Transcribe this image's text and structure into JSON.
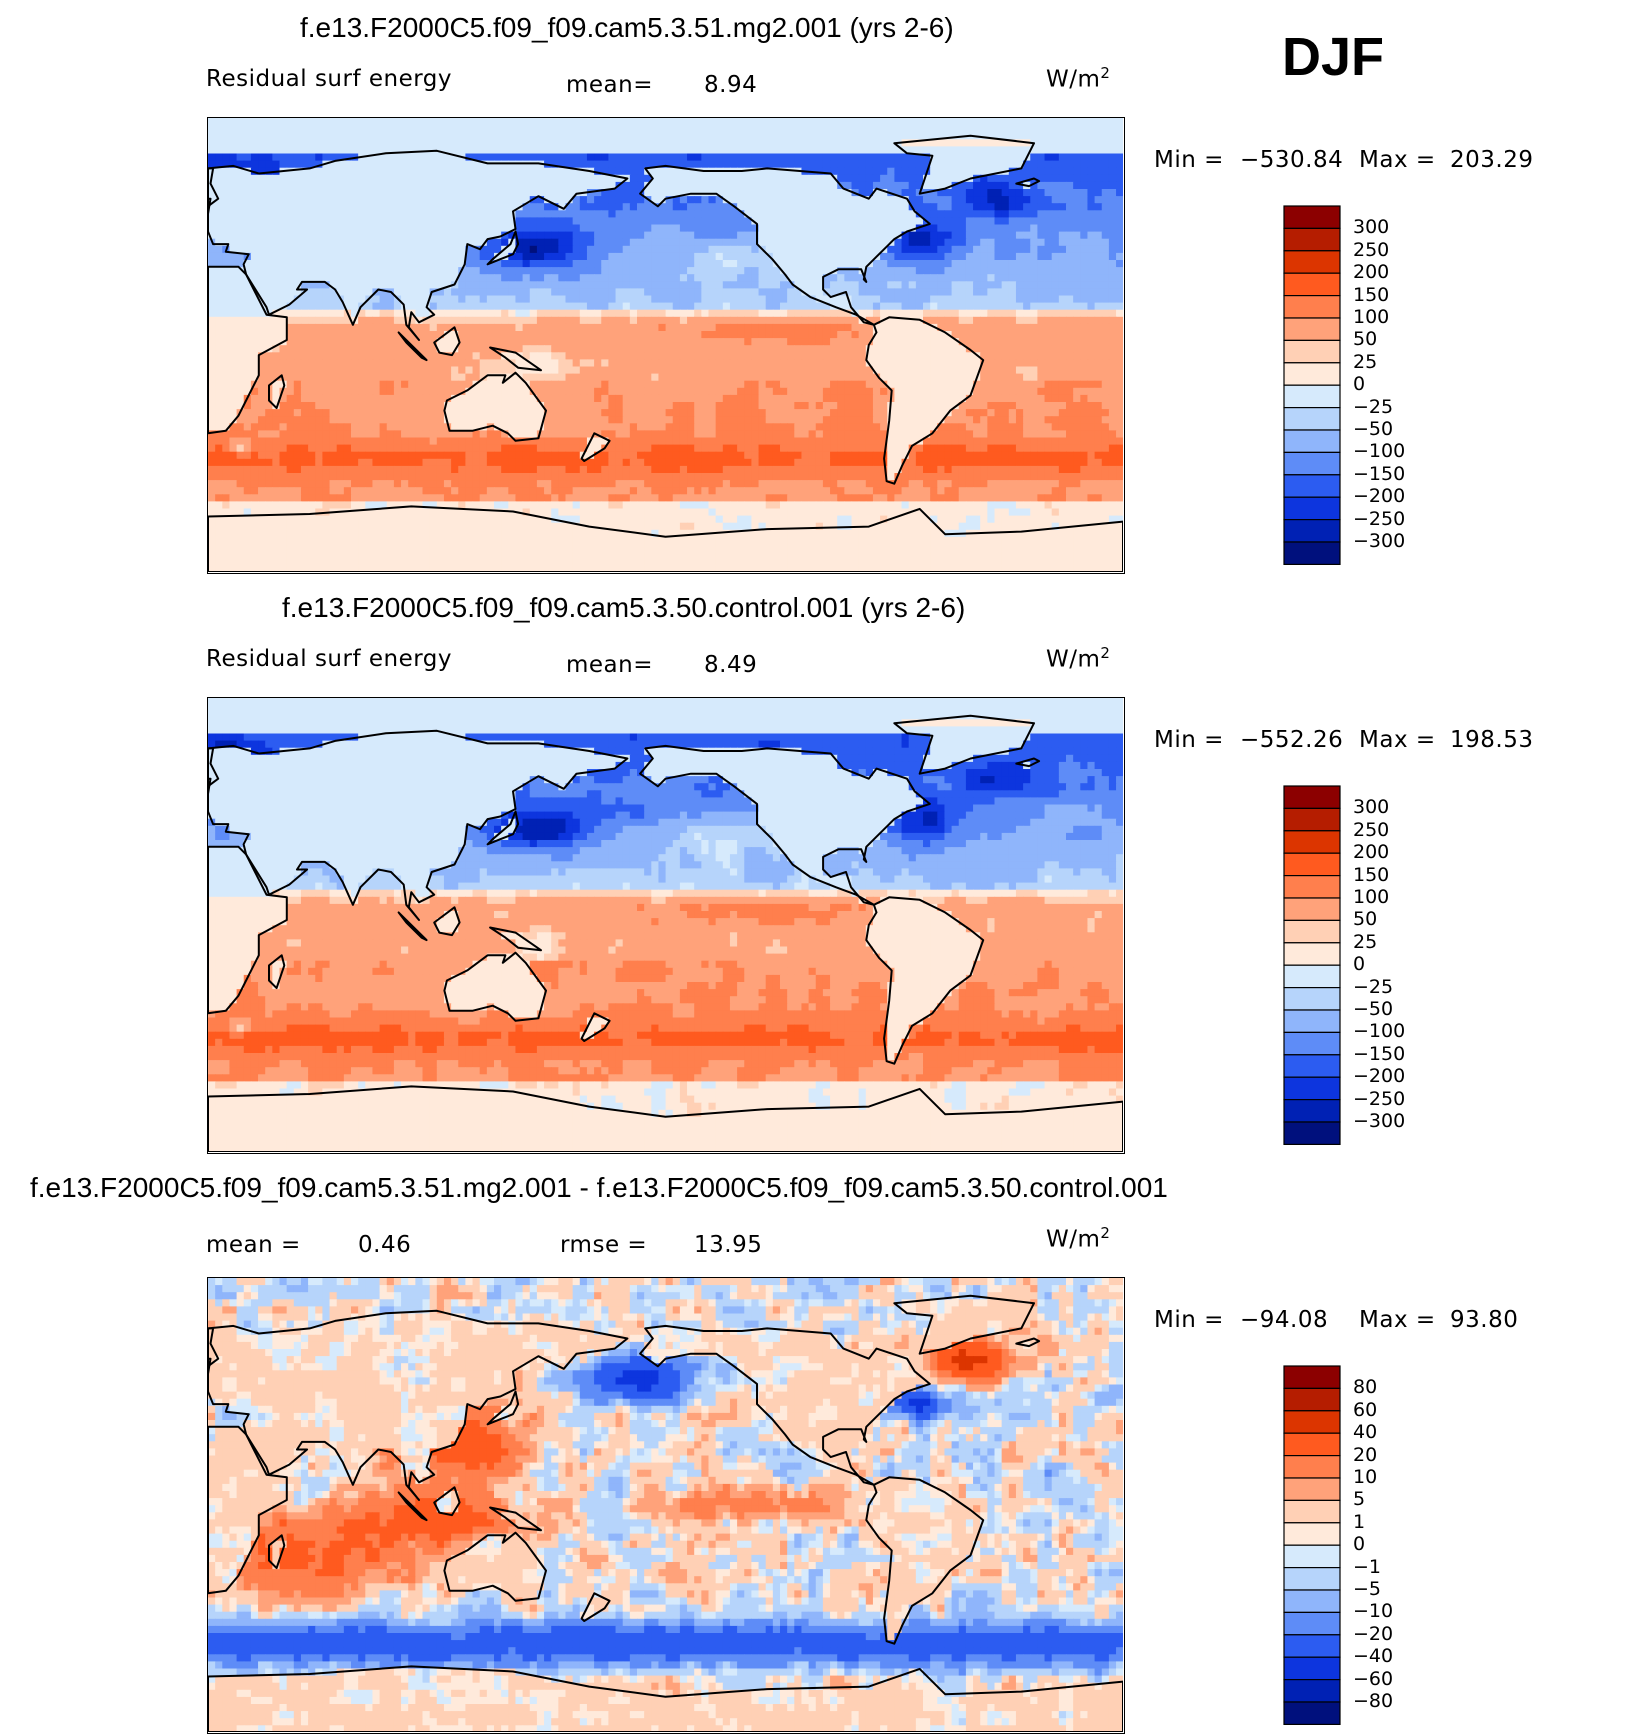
{
  "season_label": "DJF",
  "chart_data": [
    {
      "type": "heatmap",
      "title": "f.e13.F2000C5.f09_f09.cam5.3.51.mg2.001 (yrs 2-6)",
      "left_label": "Residual surf energy",
      "stat1_label": "mean=",
      "stat1_value": "8.94",
      "units_base": "W/m",
      "units_exp": "2",
      "min_label": "Min  =",
      "min_value": "−530.84",
      "max_label": "Max  =",
      "max_value": "203.29",
      "colorbar_levels": [
        "300",
        "250",
        "200",
        "150",
        "100",
        "50",
        "25",
        "0",
        "−25",
        "−50",
        "−100",
        "−150",
        "−200",
        "−250",
        "−300"
      ],
      "colorbar_colors": [
        "#8c0000",
        "#b51d00",
        "#dc3500",
        "#ff5a1f",
        "#ff7f4d",
        "#ffa27a",
        "#ffd0b5",
        "#ffeadb",
        "#d6eafc",
        "#b6d4fb",
        "#8fb5fb",
        "#5e8cf7",
        "#2c5cf1",
        "#0d35de",
        "#0021b4",
        "#00107d"
      ],
      "field": "residual_djf_case"
    },
    {
      "type": "heatmap",
      "title": "f.e13.F2000C5.f09_f09.cam5.3.50.control.001 (yrs 2-6)",
      "left_label": "Residual surf energy",
      "stat1_label": "mean=",
      "stat1_value": "8.49",
      "units_base": "W/m",
      "units_exp": "2",
      "min_label": "Min  =",
      "min_value": "−552.26",
      "max_label": "Max  =",
      "max_value": "198.53",
      "colorbar_levels": [
        "300",
        "250",
        "200",
        "150",
        "100",
        "50",
        "25",
        "0",
        "−25",
        "−50",
        "−100",
        "−150",
        "−200",
        "−250",
        "−300"
      ],
      "colorbar_colors": [
        "#8c0000",
        "#b51d00",
        "#dc3500",
        "#ff5a1f",
        "#ff7f4d",
        "#ffa27a",
        "#ffd0b5",
        "#ffeadb",
        "#d6eafc",
        "#b6d4fb",
        "#8fb5fb",
        "#5e8cf7",
        "#2c5cf1",
        "#0d35de",
        "#0021b4",
        "#00107d"
      ],
      "field": "residual_djf_control"
    },
    {
      "type": "heatmap",
      "title": "f.e13.F2000C5.f09_f09.cam5.3.51.mg2.001 - f.e13.F2000C5.f09_f09.cam5.3.50.control.001",
      "stat1_label": "mean  =",
      "stat1_value": "0.46",
      "stat2_label": "rmse  =",
      "stat2_value": "13.95",
      "units_base": "W/m",
      "units_exp": "2",
      "min_label": "Min  =",
      "min_value": "−94.08",
      "max_label": "Max  =",
      "max_value": "93.80",
      "colorbar_levels": [
        "80",
        "60",
        "40",
        "20",
        "10",
        "5",
        "1",
        "0",
        "−1",
        "−5",
        "−10",
        "−20",
        "−40",
        "−60",
        "−80"
      ],
      "colorbar_colors": [
        "#8c0000",
        "#b51d00",
        "#dc3500",
        "#ff5a1f",
        "#ff7f4d",
        "#ffa27a",
        "#ffd0b5",
        "#ffeadb",
        "#d6eafc",
        "#b6d4fb",
        "#8fb5fb",
        "#5e8cf7",
        "#2c5cf1",
        "#0d35de",
        "#0021b4",
        "#00107d"
      ],
      "field": "residual_djf_difference"
    }
  ]
}
